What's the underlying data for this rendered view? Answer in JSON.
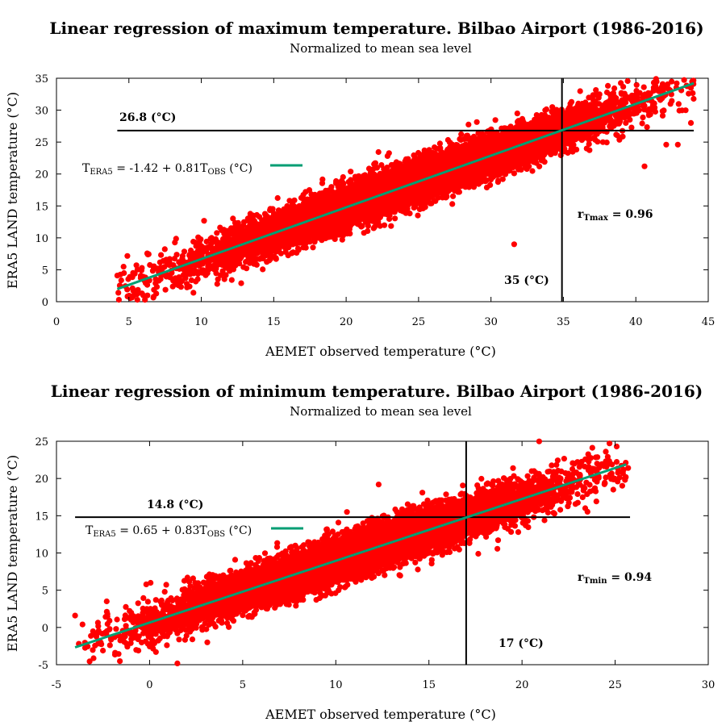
{
  "colors": {
    "points": "#ff0000",
    "fit": "#009e73",
    "refline": "#000000"
  },
  "chart_data": [
    {
      "type": "scatter",
      "title": "Linear regression of maximum temperature. Bilbao Airport (1986-2016)",
      "subtitle": "Normalized to mean sea level",
      "xlabel": "AEMET observed temperature (°C)",
      "ylabel": "ERA5 LAND temperature (°C)",
      "xlim": [
        0,
        45
      ],
      "ylim": [
        0,
        35
      ],
      "xticks": [
        0,
        5,
        10,
        15,
        20,
        25,
        30,
        35,
        40,
        45
      ],
      "yticks": [
        0,
        5,
        10,
        15,
        20,
        25,
        30,
        35
      ],
      "fit": {
        "intercept": -1.42,
        "slope": 0.81,
        "x_range": [
          4.2,
          44
        ]
      },
      "equation": {
        "prefix": "T",
        "lhs_sub": "ERA5",
        "rhs": " = -1.42 + 0.81T",
        "rhs_sub": "OBS",
        "unit": " (°C)"
      },
      "correlation": {
        "label": "r",
        "sub": "Tmax",
        "value": " = 0.96"
      },
      "vline": {
        "x": 34.9,
        "label": "35 (°C)"
      },
      "hline": {
        "y": 26.8,
        "x_range": [
          4.2,
          44
        ],
        "label": "26.8 (°C)"
      },
      "cloud": {
        "x_min": 4.2,
        "x_max": 44,
        "spread": 1.6,
        "count": 9000,
        "outliers": [
          [
            4.2,
            4.1
          ],
          [
            5.3,
            1.7
          ],
          [
            5.9,
            1.3
          ],
          [
            9.0,
            2.8
          ],
          [
            12.1,
            3.4
          ],
          [
            31.6,
            9.0
          ],
          [
            34.3,
            28.4
          ],
          [
            35.7,
            27.1
          ],
          [
            38.6,
            31.2
          ],
          [
            40.6,
            21.2
          ],
          [
            42.1,
            24.6
          ],
          [
            42.9,
            24.6
          ],
          [
            43.8,
            33.5
          ],
          [
            43.8,
            28.0
          ],
          [
            41.3,
            30.4
          ],
          [
            39.0,
            32.7
          ]
        ]
      }
    },
    {
      "type": "scatter",
      "title": "Linear regression of minimum temperature. Bilbao Airport (1986-2016)",
      "subtitle": "Normalized to mean sea level",
      "xlabel": "AEMET observed temperature (°C)",
      "ylabel": "ERA5 LAND temperature (°C)",
      "xlim": [
        -5,
        30
      ],
      "ylim": [
        -5,
        25
      ],
      "xticks": [
        -5,
        0,
        5,
        10,
        15,
        20,
        25,
        30
      ],
      "yticks": [
        -5,
        0,
        5,
        10,
        15,
        20,
        25
      ],
      "fit": {
        "intercept": 0.65,
        "slope": 0.83,
        "x_range": [
          -4,
          25.6
        ]
      },
      "equation": {
        "prefix": "T",
        "lhs_sub": "ERA5",
        "rhs": " = 0.65 + 0.83T",
        "rhs_sub": "OBS",
        "unit": " (°C)"
      },
      "correlation": {
        "label": "r",
        "sub": "Tmin",
        "value": " = 0.94"
      },
      "vline": {
        "x": 17,
        "label": "17 (°C)"
      },
      "hline": {
        "y": 14.8,
        "x_range": [
          -4,
          25.8
        ],
        "label": "14.8 (°C)"
      },
      "cloud": {
        "x_min": -3.5,
        "x_max": 25.6,
        "spread": 1.4,
        "count": 9000,
        "outliers": [
          [
            -4.0,
            1.6
          ],
          [
            -3.8,
            -2.2
          ],
          [
            -3.6,
            0.4
          ],
          [
            -2.3,
            3.5
          ],
          [
            -1.8,
            -0.2
          ],
          [
            -0.6,
            -3.1
          ],
          [
            2.3,
            -1.6
          ],
          [
            3.1,
            -2.0
          ],
          [
            10.6,
            15.5
          ],
          [
            12.3,
            19.2
          ],
          [
            19.8,
            12.8
          ],
          [
            24.5,
            23.6
          ],
          [
            24.5,
            22.3
          ],
          [
            25.7,
            21.4
          ],
          [
            24.9,
            18.5
          ],
          [
            22.1,
            17.1
          ]
        ]
      }
    }
  ]
}
